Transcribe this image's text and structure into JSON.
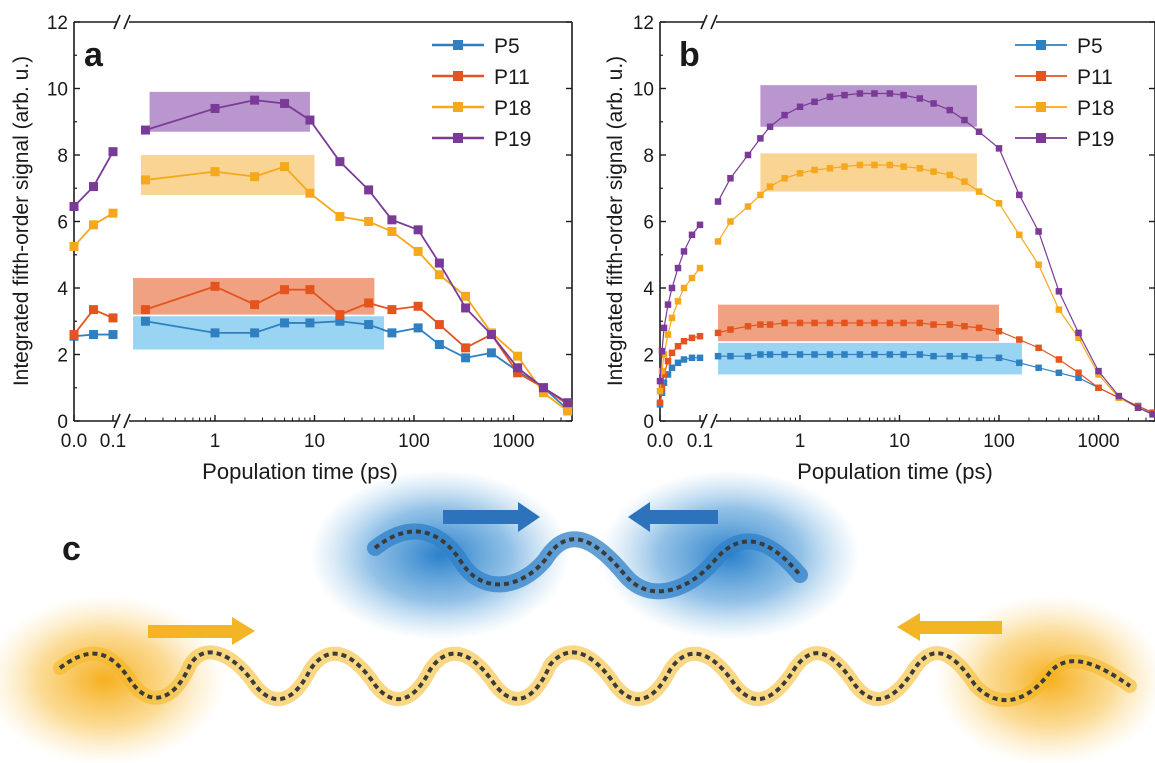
{
  "colors": {
    "P5": "#2f7fc1",
    "P11": "#e3541f",
    "P18": "#f5a81c",
    "P19": "#7a3a98",
    "band_blue": "#7fcaf0",
    "band_orange": "#ec8a62",
    "band_yellow": "#f7c977",
    "band_purple": "#a87cc0",
    "glow_blue": "#2d86cf",
    "glow_yellow": "#f7b21b",
    "arrow_blue": "#2d73bb",
    "arrow_yellow": "#f3b524"
  },
  "chart_data": [
    {
      "type": "line",
      "panel": "a",
      "xlabel": "Population time (ps)",
      "ylabel": "Integrated fifth-order signal (arb. u.)",
      "xscale": "linear below 0.1 ps, broken axis, log above",
      "ylim": [
        0,
        12
      ],
      "yticks": [
        "0",
        "2",
        "4",
        "6",
        "8",
        "10",
        "12"
      ],
      "xticks": [
        "0.0",
        "0.1",
        "1",
        "10",
        "100",
        "1000"
      ],
      "legend_position": "top-right",
      "series": [
        {
          "name": "P5",
          "x": [
            0.0,
            0.05,
            0.1,
            0.2,
            1,
            2.5,
            5,
            9,
            18,
            35,
            60,
            110,
            180,
            330,
            600,
            1100,
            2000,
            3500
          ],
          "y": [
            2.55,
            2.6,
            2.6,
            3.0,
            2.65,
            2.65,
            2.95,
            2.95,
            3.0,
            2.9,
            2.65,
            2.8,
            2.3,
            1.9,
            2.05,
            1.5,
            1.0,
            0.35
          ]
        },
        {
          "name": "P11",
          "x": [
            0.0,
            0.05,
            0.1,
            0.2,
            1,
            2.5,
            5,
            9,
            18,
            35,
            60,
            110,
            180,
            330,
            600,
            1100,
            2000,
            3500
          ],
          "y": [
            2.6,
            3.35,
            3.1,
            3.35,
            4.05,
            3.5,
            3.95,
            3.95,
            3.2,
            3.55,
            3.35,
            3.45,
            2.9,
            2.2,
            2.6,
            1.45,
            1.0,
            0.5
          ]
        },
        {
          "name": "P18",
          "x": [
            0.0,
            0.05,
            0.1,
            0.2,
            1,
            2.5,
            5,
            9,
            18,
            35,
            60,
            110,
            180,
            330,
            600,
            1100,
            2000,
            3500
          ],
          "y": [
            5.25,
            5.9,
            6.25,
            7.25,
            7.5,
            7.35,
            7.65,
            6.85,
            6.15,
            6.0,
            5.7,
            5.1,
            4.4,
            3.75,
            2.65,
            1.95,
            0.85,
            0.3
          ]
        },
        {
          "name": "P19",
          "x": [
            0.0,
            0.05,
            0.1,
            0.2,
            1,
            2.5,
            5,
            9,
            18,
            35,
            60,
            110,
            180,
            330,
            600,
            1100,
            2000,
            3500
          ],
          "y": [
            6.45,
            7.05,
            8.1,
            8.75,
            9.4,
            9.65,
            9.55,
            9.05,
            7.8,
            6.95,
            6.05,
            5.75,
            4.75,
            3.4,
            2.6,
            1.6,
            1.0,
            0.55
          ]
        }
      ],
      "bands": [
        {
          "series": "P5",
          "x": [
            0.15,
            50
          ],
          "y": [
            2.15,
            3.15
          ]
        },
        {
          "series": "P11",
          "x": [
            0.15,
            40
          ],
          "y": [
            3.2,
            4.3
          ]
        },
        {
          "series": "P18",
          "x": [
            0.18,
            10
          ],
          "y": [
            6.8,
            8.0
          ]
        },
        {
          "series": "P19",
          "x": [
            0.22,
            9
          ],
          "y": [
            8.7,
            9.9
          ]
        }
      ]
    },
    {
      "type": "line",
      "panel": "b",
      "xlabel": "Population time (ps)",
      "ylabel": "Integrated fifth-order signal (arb. u.)",
      "xscale": "linear below 0.1 ps, broken axis, log above",
      "ylim": [
        0,
        12
      ],
      "yticks": [
        "0",
        "2",
        "4",
        "6",
        "8",
        "10",
        "12"
      ],
      "xticks": [
        "0.0",
        "0.1",
        "1",
        "10",
        "100",
        "1000"
      ],
      "legend_position": "top-right",
      "series": [
        {
          "name": "P5",
          "x": [
            0.0,
            0.005,
            0.01,
            0.02,
            0.03,
            0.045,
            0.06,
            0.08,
            0.1,
            0.15,
            0.2,
            0.3,
            0.4,
            0.5,
            0.7,
            1,
            1.4,
            2,
            2.8,
            4,
            5.6,
            8,
            11,
            16,
            22,
            32,
            45,
            63,
            100,
            160,
            250,
            400,
            630,
            1000,
            1600,
            2500,
            3500
          ],
          "y": [
            0.5,
            0.85,
            1.15,
            1.4,
            1.6,
            1.75,
            1.85,
            1.9,
            1.9,
            1.95,
            1.95,
            1.95,
            2.0,
            2.0,
            2.0,
            2.0,
            2.0,
            2.0,
            2.0,
            2.0,
            2.0,
            2.0,
            2.0,
            2.0,
            1.95,
            1.95,
            1.95,
            1.9,
            1.9,
            1.75,
            1.6,
            1.45,
            1.3,
            1.0,
            0.7,
            0.45,
            0.25
          ]
        },
        {
          "name": "P11",
          "x": [
            0.0,
            0.005,
            0.01,
            0.02,
            0.03,
            0.045,
            0.06,
            0.08,
            0.1,
            0.15,
            0.2,
            0.3,
            0.4,
            0.5,
            0.7,
            1,
            1.4,
            2,
            2.8,
            4,
            5.6,
            8,
            11,
            16,
            22,
            32,
            45,
            63,
            100,
            160,
            250,
            400,
            630,
            1000,
            1600,
            2500,
            3500
          ],
          "y": [
            0.55,
            1.0,
            1.4,
            1.8,
            2.05,
            2.25,
            2.4,
            2.5,
            2.55,
            2.65,
            2.75,
            2.85,
            2.9,
            2.9,
            2.95,
            2.95,
            2.95,
            2.95,
            2.95,
            2.95,
            2.95,
            2.95,
            2.95,
            2.95,
            2.9,
            2.9,
            2.85,
            2.8,
            2.7,
            2.45,
            2.2,
            1.85,
            1.45,
            1.0,
            0.7,
            0.45,
            0.25
          ]
        },
        {
          "name": "P18",
          "x": [
            0.0,
            0.005,
            0.01,
            0.02,
            0.03,
            0.045,
            0.06,
            0.08,
            0.1,
            0.15,
            0.2,
            0.3,
            0.4,
            0.5,
            0.7,
            1,
            1.4,
            2,
            2.8,
            4,
            5.6,
            8,
            11,
            16,
            22,
            32,
            45,
            63,
            100,
            160,
            250,
            400,
            630,
            1000,
            1600,
            2500,
            3500
          ],
          "y": [
            0.9,
            1.5,
            2.0,
            2.6,
            3.1,
            3.6,
            4.0,
            4.3,
            4.6,
            5.4,
            6.0,
            6.45,
            6.8,
            7.05,
            7.3,
            7.45,
            7.55,
            7.6,
            7.65,
            7.7,
            7.7,
            7.7,
            7.65,
            7.6,
            7.5,
            7.4,
            7.2,
            6.9,
            6.55,
            5.6,
            4.7,
            3.35,
            2.5,
            1.4,
            0.7,
            0.4,
            0.2
          ]
        },
        {
          "name": "P19",
          "x": [
            0.0,
            0.005,
            0.01,
            0.02,
            0.03,
            0.045,
            0.06,
            0.08,
            0.1,
            0.15,
            0.2,
            0.3,
            0.4,
            0.5,
            0.7,
            1,
            1.4,
            2,
            2.8,
            4,
            5.6,
            8,
            11,
            16,
            22,
            32,
            45,
            63,
            100,
            160,
            250,
            400,
            630,
            1000,
            1600,
            2500,
            3500
          ],
          "y": [
            1.2,
            2.1,
            2.8,
            3.5,
            4.0,
            4.6,
            5.1,
            5.6,
            5.9,
            6.6,
            7.3,
            8.0,
            8.5,
            8.85,
            9.2,
            9.45,
            9.6,
            9.75,
            9.8,
            9.85,
            9.85,
            9.85,
            9.8,
            9.7,
            9.55,
            9.35,
            9.05,
            8.7,
            8.2,
            6.8,
            5.7,
            3.9,
            2.65,
            1.5,
            0.75,
            0.4,
            0.2
          ]
        }
      ],
      "bands": [
        {
          "series": "P5",
          "x": [
            0.15,
            170
          ],
          "y": [
            1.4,
            2.35
          ]
        },
        {
          "series": "P11",
          "x": [
            0.15,
            100
          ],
          "y": [
            2.4,
            3.5
          ]
        },
        {
          "series": "P18",
          "x": [
            0.4,
            60
          ],
          "y": [
            6.9,
            8.05
          ]
        },
        {
          "series": "P19",
          "x": [
            0.4,
            60
          ],
          "y": [
            8.85,
            10.1
          ]
        }
      ]
    }
  ],
  "panel_labels": {
    "a": "a",
    "b": "b",
    "c": "c"
  }
}
